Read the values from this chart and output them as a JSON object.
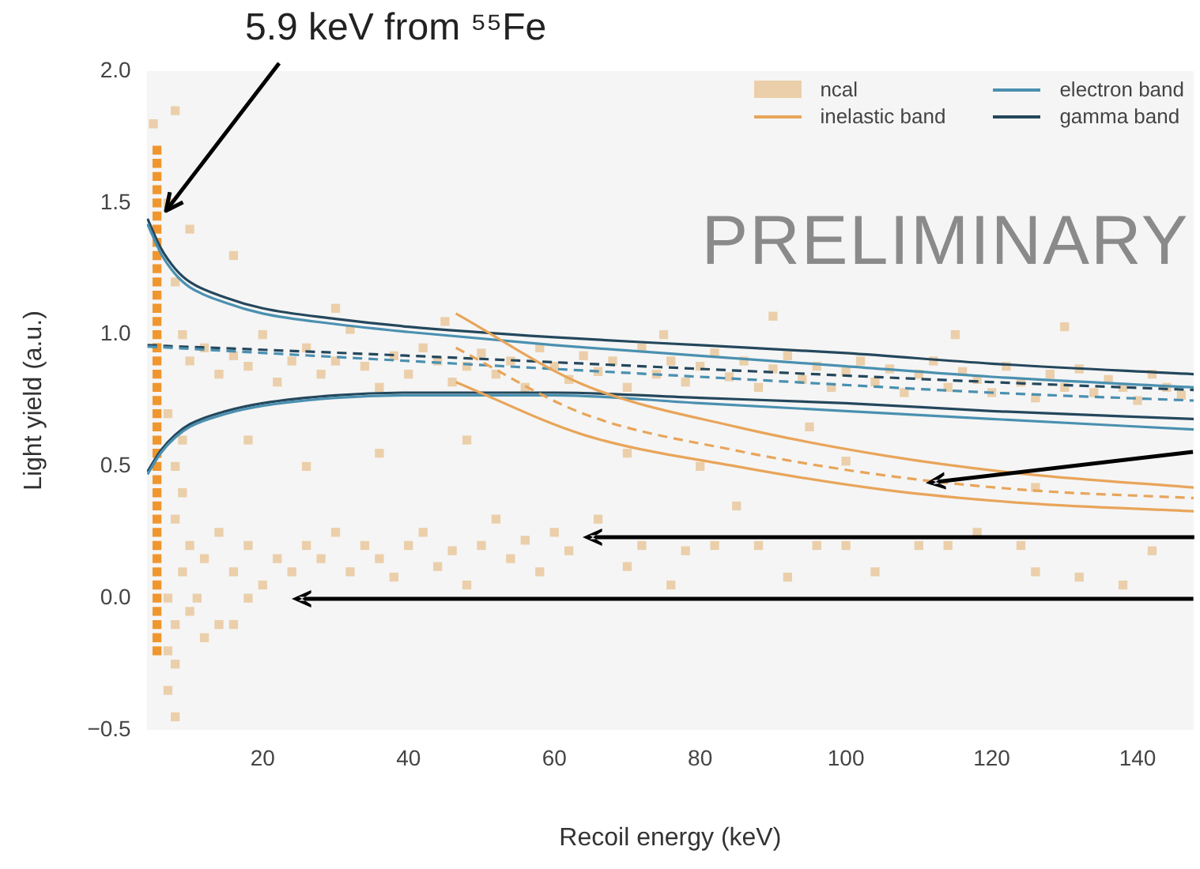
{
  "chart_data": {
    "type": "scatter",
    "xlabel": "Recoil energy (keV)",
    "ylabel": "Light yield (a.u.)",
    "xlim": [
      4.1,
      147.7
    ],
    "ylim": [
      -0.5,
      2.0
    ],
    "xticks": [
      20,
      40,
      60,
      80,
      100,
      120,
      140
    ],
    "yticks": [
      {
        "value": -0.5,
        "label": "−0.5"
      },
      {
        "value": 0,
        "label": "0.0"
      },
      {
        "value": 0.5,
        "label": "0.5"
      },
      {
        "value": 1,
        "label": "1.0"
      },
      {
        "value": 1.5,
        "label": "1.5"
      },
      {
        "value": 2,
        "label": "2.0"
      }
    ],
    "grid": false,
    "legend": "top right",
    "marker": "square",
    "annotations": [
      "PRELIMINARY",
      {
        "text": "5.9 keV from ⁵⁵Fe",
        "x": 6.4,
        "y": 1.47
      }
    ],
    "series": [
      {
        "name": "ncal",
        "color": "#ebcfaa",
        "x": [
          10,
          12,
          14,
          16,
          18,
          20,
          22,
          24,
          26,
          28,
          30,
          32,
          34,
          36,
          38,
          40,
          42,
          44,
          46,
          48,
          50,
          52,
          54,
          56,
          58,
          60,
          62,
          64,
          66,
          68,
          70,
          72,
          74,
          76,
          78,
          80,
          82,
          84,
          86,
          88,
          90,
          92,
          94,
          96,
          98,
          100,
          102,
          104,
          106,
          108,
          110,
          112,
          114,
          116,
          118,
          120,
          122,
          124,
          126,
          128,
          130,
          132,
          134,
          136,
          138,
          140,
          142,
          144,
          146,
          30,
          45,
          16,
          90,
          130,
          75,
          115,
          8,
          5,
          10,
          18,
          26,
          36,
          48,
          70,
          80,
          95,
          100,
          85,
          126,
          8,
          10,
          12,
          14,
          16,
          18,
          20,
          22,
          24,
          26,
          28,
          30,
          32,
          34,
          36,
          38,
          40,
          42,
          44,
          46,
          48,
          50,
          52,
          54,
          56,
          58,
          60,
          62,
          66,
          70,
          72,
          76,
          78,
          82,
          88,
          92,
          96,
          100,
          104,
          110,
          114,
          118,
          124,
          126,
          132,
          138,
          142,
          7,
          8,
          9,
          7,
          8,
          7,
          8,
          10,
          11,
          12,
          14,
          16,
          18,
          9,
          8,
          9,
          7,
          8,
          9,
          7
        ],
        "values": [
          0.9,
          0.95,
          0.85,
          0.92,
          0.88,
          1.0,
          0.82,
          0.9,
          0.95,
          0.85,
          0.9,
          1.02,
          0.88,
          0.8,
          0.92,
          0.85,
          0.95,
          0.9,
          0.82,
          0.88,
          0.93,
          0.85,
          0.9,
          0.8,
          0.95,
          0.88,
          0.83,
          0.92,
          0.86,
          0.9,
          0.8,
          0.95,
          0.85,
          0.9,
          0.82,
          0.88,
          0.93,
          0.84,
          0.9,
          0.8,
          0.87,
          0.92,
          0.83,
          0.88,
          0.8,
          0.86,
          0.9,
          0.82,
          0.87,
          0.78,
          0.85,
          0.9,
          0.8,
          0.86,
          0.83,
          0.78,
          0.88,
          0.82,
          0.76,
          0.85,
          0.8,
          0.87,
          0.78,
          0.83,
          0.8,
          0.75,
          0.85,
          0.8,
          0.77,
          1.1,
          1.05,
          1.3,
          1.07,
          1.03,
          1.0,
          1.0,
          1.85,
          1.8,
          1.4,
          0.6,
          0.5,
          0.55,
          0.6,
          0.55,
          0.5,
          0.65,
          0.52,
          0.35,
          0.42,
          0.3,
          0.2,
          0.15,
          0.25,
          0.1,
          0.2,
          0.05,
          0.15,
          0.1,
          0.2,
          0.15,
          0.25,
          0.1,
          0.2,
          0.15,
          0.08,
          0.2,
          0.25,
          0.12,
          0.18,
          0.05,
          0.2,
          0.3,
          0.15,
          0.22,
          0.1,
          0.25,
          0.18,
          0.3,
          0.12,
          0.2,
          0.05,
          0.18,
          0.2,
          0.2,
          0.08,
          0.2,
          0.2,
          0.1,
          0.2,
          0.2,
          0.25,
          0.2,
          0.1,
          0.08,
          0.05,
          0.18,
          0.0,
          -0.1,
          0.1,
          -0.2,
          -0.25,
          -0.35,
          -0.45,
          -0.05,
          0.0,
          -0.15,
          -0.1,
          -0.1,
          0.0,
          0.4,
          0.5,
          0.6,
          0.7,
          1.2,
          1.0,
          1.5
        ]
      },
      {
        "color": "#f0962e",
        "x": [
          5.5,
          5.5,
          5.5,
          5.5,
          5.5,
          5.5,
          5.5,
          5.5,
          5.5,
          5.5,
          5.5,
          5.5,
          5.5,
          5.5,
          5.5,
          5.5,
          5.5,
          5.5,
          5.5,
          5.5,
          5.5,
          5.5,
          5.5,
          5.5,
          5.5,
          5.5,
          5.5,
          5.5,
          5.5,
          5.5,
          5.5,
          5.5,
          5.5,
          5.5,
          5.5,
          5.5,
          5.5,
          5.5,
          5.5
        ],
        "values": [
          -0.2,
          -0.15,
          -0.1,
          -0.05,
          0.0,
          0.05,
          0.1,
          0.15,
          0.2,
          0.25,
          0.3,
          0.35,
          0.4,
          0.45,
          0.5,
          0.55,
          0.6,
          0.65,
          0.7,
          0.75,
          0.8,
          0.85,
          0.9,
          0.95,
          1.0,
          1.05,
          1.1,
          1.15,
          1.2,
          1.25,
          1.3,
          1.35,
          1.4,
          1.45,
          1.5,
          1.55,
          1.6,
          1.65,
          1.7
        ]
      },
      {
        "name": "inelastic band",
        "type": "line",
        "marker": "none",
        "color": "#e8a55a",
        "line_style": "solid",
        "x": [
          46.5,
          64,
          85,
          105.6,
          125,
          147.7
        ],
        "values": [
          1.08,
          0.81,
          0.65,
          0.54,
          0.47,
          0.42
        ]
      },
      {
        "type": "line",
        "marker": "none",
        "color": "#e8a55a",
        "line_style": "dashed",
        "x": [
          46.5,
          64,
          85,
          105.6,
          125,
          147.7
        ],
        "values": [
          0.95,
          0.7,
          0.56,
          0.465,
          0.41,
          0.38
        ]
      },
      {
        "type": "line",
        "marker": "none",
        "color": "#e8a55a",
        "line_style": "solid",
        "x": [
          46.5,
          64,
          85,
          105.6,
          125,
          147.7
        ],
        "values": [
          0.82,
          0.62,
          0.5,
          0.41,
          0.36,
          0.33
        ]
      },
      {
        "name": "electron band",
        "type": "line",
        "marker": "none",
        "color": "#4a90b0",
        "line_style": "solid",
        "x": [
          4.2,
          6,
          8,
          10,
          15,
          20,
          30,
          40,
          60,
          80,
          100,
          120,
          147.7
        ],
        "values": [
          1.42,
          1.31,
          1.23,
          1.18,
          1.12,
          1.08,
          1.04,
          1.01,
          0.96,
          0.92,
          0.88,
          0.84,
          0.8
        ]
      },
      {
        "type": "line",
        "marker": "none",
        "color": "#4a90b0",
        "line_style": "dashed",
        "x": [
          4.2,
          40,
          80,
          120,
          147.7
        ],
        "values": [
          0.955,
          0.9,
          0.84,
          0.78,
          0.75
        ]
      },
      {
        "type": "line",
        "marker": "none",
        "color": "#4a90b0",
        "line_style": "solid",
        "x": [
          4.2,
          6,
          8,
          10,
          15,
          20,
          30,
          40,
          60,
          80,
          100,
          120,
          147.7
        ],
        "values": [
          0.47,
          0.55,
          0.61,
          0.65,
          0.7,
          0.73,
          0.76,
          0.77,
          0.77,
          0.74,
          0.71,
          0.68,
          0.64
        ]
      },
      {
        "name": "gamma band",
        "type": "line",
        "marker": "none",
        "color": "#24475c",
        "line_style": "solid",
        "x": [
          4.2,
          6,
          8,
          10,
          15,
          20,
          30,
          40,
          60,
          80,
          100,
          120,
          147.7
        ],
        "values": [
          1.44,
          1.33,
          1.25,
          1.2,
          1.14,
          1.1,
          1.06,
          1.03,
          0.99,
          0.96,
          0.93,
          0.89,
          0.85
        ]
      },
      {
        "type": "line",
        "marker": "none",
        "color": "#24475c",
        "line_style": "dashed",
        "x": [
          4.2,
          40,
          80,
          120,
          147.7
        ],
        "values": [
          0.96,
          0.92,
          0.87,
          0.82,
          0.79
        ]
      },
      {
        "type": "line",
        "marker": "none",
        "color": "#24475c",
        "line_style": "solid",
        "x": [
          4.2,
          6,
          8,
          10,
          15,
          20,
          30,
          40,
          60,
          80,
          100,
          120,
          147.7
        ],
        "values": [
          0.48,
          0.56,
          0.62,
          0.66,
          0.71,
          0.74,
          0.77,
          0.78,
          0.78,
          0.76,
          0.74,
          0.71,
          0.68
        ]
      }
    ]
  }
}
